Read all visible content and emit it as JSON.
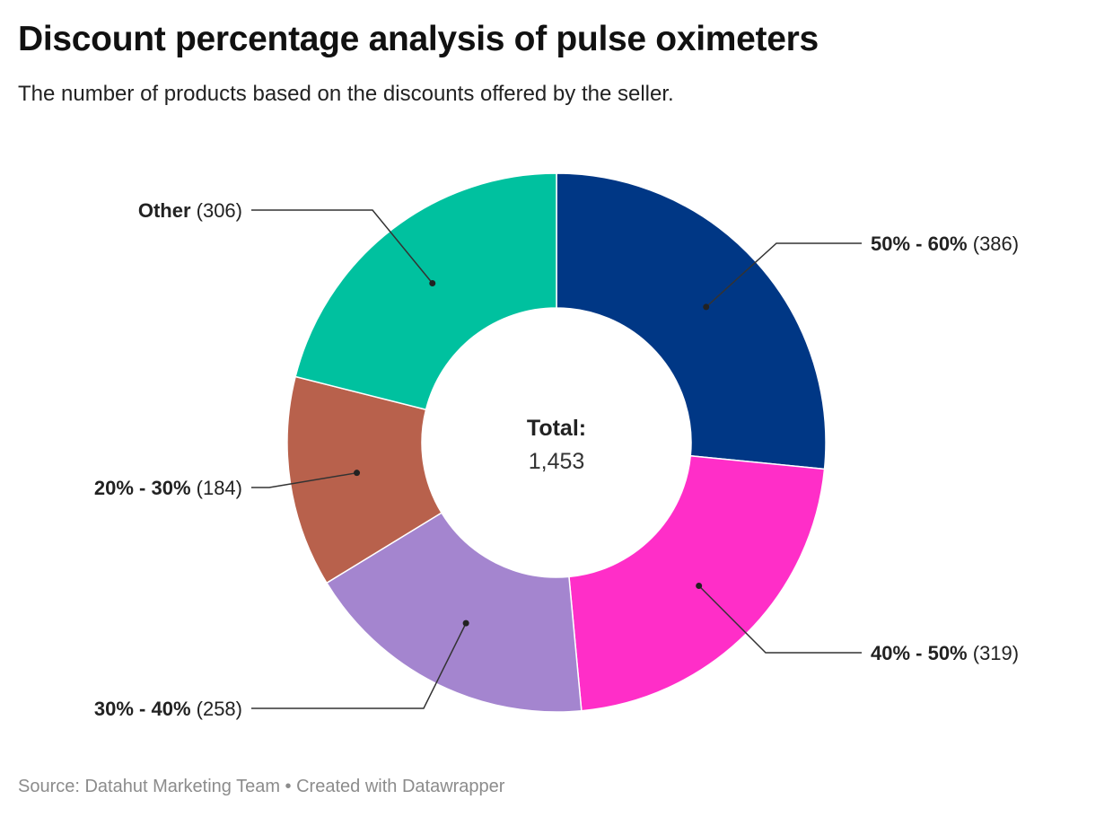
{
  "header": {
    "title": "Discount percentage analysis of pulse oximeters",
    "subtitle": "The number of products based on the discounts offered by the seller."
  },
  "footer": {
    "source": "Source: Datahut Marketing Team • Created with Datawrapper"
  },
  "chart_data": {
    "type": "pie",
    "variant": "donut",
    "center_label": {
      "title": "Total:",
      "value": "1,453"
    },
    "slices": [
      {
        "label": "50% - 60%",
        "value": 386,
        "value_text": "(386)",
        "color": "#003785"
      },
      {
        "label": "40% - 50%",
        "value": 319,
        "value_text": "(319)",
        "color": "#ff2ec8"
      },
      {
        "label": "30% - 40%",
        "value": 258,
        "value_text": "(258)",
        "color": "#a485cf"
      },
      {
        "label": "20% - 30%",
        "value": 184,
        "value_text": "(184)",
        "color": "#b8614c"
      },
      {
        "label": "Other",
        "value": 306,
        "value_text": "(306)",
        "color": "#00c19f"
      }
    ],
    "start_angle": "12 o'clock",
    "direction": "clockwise",
    "legend": "none",
    "labels": "outside with leader lines"
  }
}
